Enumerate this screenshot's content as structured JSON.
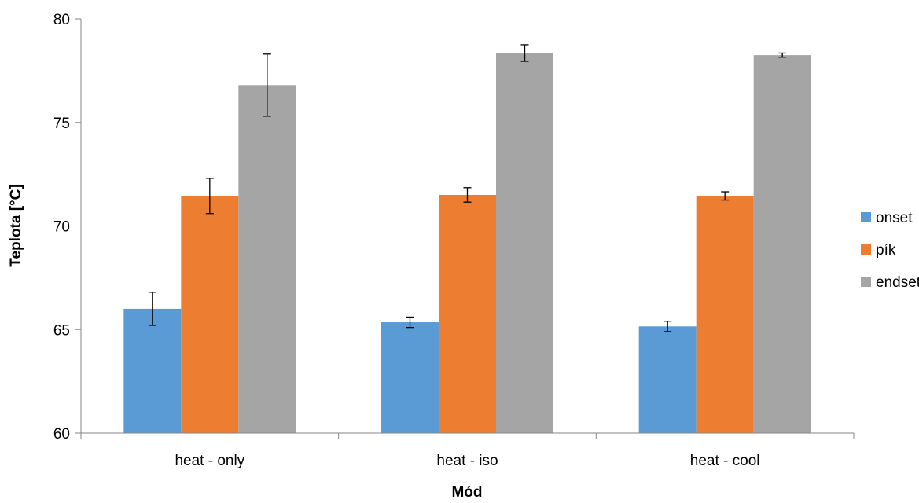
{
  "chart_data": {
    "type": "bar",
    "title": "",
    "xlabel": "Mód",
    "ylabel": "Teplota [°C]",
    "ylim": [
      60,
      80
    ],
    "yticks": [
      60,
      65,
      70,
      75,
      80
    ],
    "grid": false,
    "legend_position": "right",
    "categories": [
      "heat - only",
      "heat - iso",
      "heat - cool"
    ],
    "series": [
      {
        "name": "onset",
        "color": "#5b9bd5",
        "values": [
          66.0,
          65.35,
          65.15
        ],
        "errors": [
          0.8,
          0.25,
          0.25
        ]
      },
      {
        "name": "pík",
        "color": "#ed7d31",
        "values": [
          71.45,
          71.5,
          71.45
        ],
        "errors": [
          0.85,
          0.35,
          0.2
        ]
      },
      {
        "name": "endset",
        "color": "#a5a5a5",
        "values": [
          76.8,
          78.35,
          78.25
        ],
        "errors": [
          1.5,
          0.4,
          0.1
        ]
      }
    ]
  }
}
